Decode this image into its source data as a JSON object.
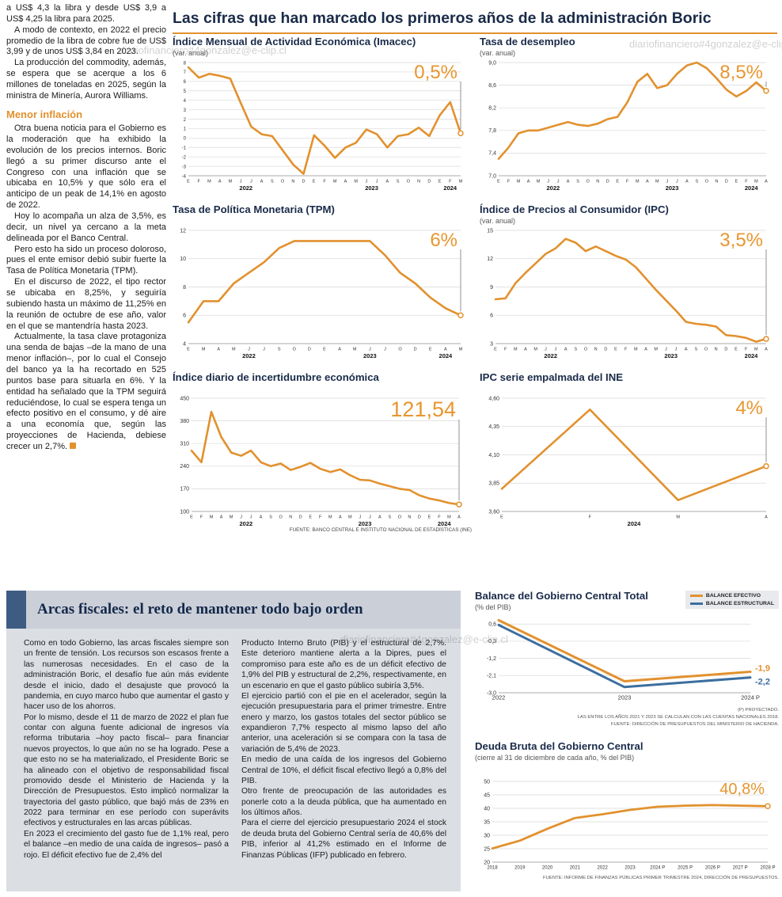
{
  "watermark": "diariofinanciero#4gonzalez@e-clip.cl",
  "main_title": "Las cifras que han marcado los primeros años de la administración Boric",
  "left_column": {
    "paragraphs": [
      "a US$ 4,3 la libra y desde US$ 3,9 a US$ 4,25 la libra para 2025.",
      "A modo de contexto, en 2022 el precio promedio de la libra de cobre fue de US$ 3,99 y de unos US$ 3,84 en 2023.",
      "La producción del commodity, además, se espera que se acerque a los 6 millones de toneladas en 2025, según la ministra de Minería, Aurora Williams."
    ],
    "heading": "Menor inflación",
    "paragraphs2": [
      "Otra buena noticia para el Gobierno es la moderación que ha exhibido la evolución de los precios internos. Boric llegó a su primer discurso ante el Congreso con una inflación que se ubicaba en 10,5% y que sólo era el anticipo de un peak de 14,1% en agosto de 2022.",
      "Hoy lo acompaña un alza de 3,5%, es decir, un nivel ya cercano a la meta delineada por el Banco Central.",
      "Pero esto ha sido un proceso doloroso, pues el ente emisor debió subir fuerte la Tasa de Política Monetaria (TPM).",
      "En el discurso de 2022, el tipo rector se ubicaba en 8,25%, y seguiría subiendo hasta un máximo de 11,25% en la reunión de octubre de ese año, valor en el que se mantendría hasta 2023.",
      "Actualmente, la tasa clave protagoniza una senda de bajas –de la mano de una menor inflación–, por lo cual el Consejo del banco ya la ha recortado en 525 puntos base para situarla en 6%. Y la entidad ha señalado que la TPM seguirá reduciéndose, lo cual se espera tenga un efecto positivo en el consumo, y dé aire a una economía que, según las proyecciones de Hacienda, debiese crecer un 2,7%."
    ]
  },
  "sources": {
    "top": "FUENTE: BANCO CENTRAL E INSTITUTO NACIONAL DE ESTADÍSTICAS (INE)"
  },
  "chart_data": [
    {
      "type": "line",
      "title": "Índice Mensual de Actividad Económica (Imacec)",
      "subtitle": "(var. anual)",
      "big_label": "0,5%",
      "big_fs": 24,
      "ylim": [
        -4,
        8
      ],
      "yticks": [
        8,
        7,
        6,
        5,
        4,
        3,
        2,
        1,
        0,
        -1,
        -2,
        -3,
        -4
      ],
      "yfs": 6,
      "x_labels": [
        "E",
        "F",
        "M",
        "A",
        "M",
        "J",
        "J",
        "A",
        "S",
        "O",
        "N",
        "D",
        "E",
        "F",
        "M",
        "A",
        "M",
        "J",
        "J",
        "A",
        "S",
        "O",
        "N",
        "D",
        "E",
        "F",
        "M"
      ],
      "years": [
        {
          "label": "2022",
          "start": 0,
          "end": 11
        },
        {
          "label": "2023",
          "start": 12,
          "end": 23
        },
        {
          "label": "2024",
          "start": 24,
          "end": 26
        }
      ],
      "values": [
        7.5,
        6.4,
        6.8,
        6.6,
        6.3,
        3.7,
        1.2,
        0.4,
        0.2,
        -1.3,
        -2.8,
        -3.8,
        0.3,
        -0.8,
        -2.1,
        -1.0,
        -0.5,
        0.9,
        0.4,
        -1.0,
        0.2,
        0.4,
        1.1,
        0.2,
        2.4,
        3.8,
        0.5
      ],
      "color": "#E2912E",
      "m": [
        20,
        5,
        14,
        22
      ]
    },
    {
      "type": "line",
      "title": "Tasa de desempleo",
      "subtitle": "(var. anual)",
      "big_label": "8,5%",
      "big_fs": 24,
      "ylim": [
        7.0,
        9.0
      ],
      "yticks": [
        "9,0",
        "8,6",
        "8,2",
        "7,8",
        "7,4",
        "7,0"
      ],
      "yfs": 7,
      "x_labels": [
        "E",
        "F",
        "M",
        "A",
        "M",
        "J",
        "J",
        "A",
        "S",
        "O",
        "N",
        "D",
        "E",
        "F",
        "M",
        "A",
        "M",
        "J",
        "J",
        "A",
        "S",
        "O",
        "N",
        "D",
        "E",
        "F",
        "M",
        "A"
      ],
      "years": [
        {
          "label": "2022",
          "start": 0,
          "end": 11
        },
        {
          "label": "2023",
          "start": 12,
          "end": 23
        },
        {
          "label": "2024",
          "start": 24,
          "end": 27
        }
      ],
      "values": [
        7.3,
        7.5,
        7.75,
        7.8,
        7.8,
        7.85,
        7.9,
        7.95,
        7.9,
        7.88,
        7.92,
        8.0,
        8.04,
        8.3,
        8.66,
        8.8,
        8.55,
        8.6,
        8.8,
        8.95,
        9.0,
        8.9,
        8.72,
        8.52,
        8.4,
        8.5,
        8.65,
        8.5
      ],
      "color": "#E2912E",
      "m": [
        24,
        5,
        16,
        22
      ]
    },
    {
      "type": "line",
      "title": "Tasa de Política Monetaria (TPM)",
      "subtitle": "",
      "big_label": "6%",
      "big_fs": 24,
      "ylim": [
        4,
        12
      ],
      "yticks": [
        12,
        10,
        8,
        6,
        4
      ],
      "yfs": 7,
      "x_labels": [
        "E",
        "M",
        "A",
        "M",
        "J",
        "J",
        "S",
        "O",
        "D",
        "E",
        "A",
        "M",
        "J",
        "J",
        "O",
        "D",
        "E",
        "A",
        "M"
      ],
      "years": [
        {
          "label": "2022",
          "start": 0,
          "end": 8
        },
        {
          "label": "2023",
          "start": 9,
          "end": 15
        },
        {
          "label": "2024",
          "start": 16,
          "end": 18
        }
      ],
      "values": [
        5.5,
        7.0,
        7.0,
        8.25,
        9.0,
        9.75,
        10.75,
        11.25,
        11.25,
        11.25,
        11.25,
        11.25,
        11.25,
        10.25,
        9.0,
        8.25,
        7.25,
        6.5,
        6.0
      ],
      "color": "#E2912E",
      "m": [
        20,
        5,
        14,
        22
      ]
    },
    {
      "type": "line",
      "title": "Índice de Precios al Consumidor (IPC)",
      "subtitle": "(var. anual)",
      "big_label": "3,5%",
      "big_fs": 24,
      "ylim": [
        3,
        15
      ],
      "yticks": [
        15,
        12,
        9,
        6,
        3
      ],
      "yfs": 7,
      "x_labels": [
        "E",
        "F",
        "M",
        "A",
        "M",
        "J",
        "J",
        "A",
        "S",
        "O",
        "N",
        "D",
        "E",
        "F",
        "M",
        "A",
        "M",
        "J",
        "J",
        "A",
        "S",
        "O",
        "N",
        "D",
        "E",
        "F",
        "M",
        "A"
      ],
      "years": [
        {
          "label": "2022",
          "start": 0,
          "end": 11
        },
        {
          "label": "2023",
          "start": 12,
          "end": 23
        },
        {
          "label": "2024",
          "start": 24,
          "end": 27
        }
      ],
      "values": [
        7.7,
        7.8,
        9.4,
        10.5,
        11.5,
        12.5,
        13.1,
        14.1,
        13.7,
        12.8,
        13.3,
        12.8,
        12.3,
        11.9,
        11.1,
        9.9,
        8.7,
        7.6,
        6.5,
        5.3,
        5.1,
        5.0,
        4.8,
        3.9,
        3.8,
        3.6,
        3.2,
        3.5
      ],
      "color": "#E2912E",
      "m": [
        20,
        5,
        16,
        22
      ]
    },
    {
      "type": "line",
      "title": "Índice diario de incertidumbre económica",
      "subtitle": "",
      "big_label": "121,54",
      "big_fs": 27,
      "ylim": [
        100,
        450
      ],
      "yticks": [
        450,
        380,
        310,
        240,
        170,
        100
      ],
      "yfs": 7,
      "x_labels": [
        "E",
        "F",
        "M",
        "A",
        "M",
        "J",
        "J",
        "A",
        "S",
        "O",
        "N",
        "D",
        "E",
        "F",
        "M",
        "A",
        "M",
        "J",
        "J",
        "A",
        "S",
        "O",
        "N",
        "D",
        "E",
        "F",
        "M",
        "A"
      ],
      "years": [
        {
          "label": "2022",
          "start": 0,
          "end": 11
        },
        {
          "label": "2023",
          "start": 12,
          "end": 23
        },
        {
          "label": "2024",
          "start": 24,
          "end": 27
        }
      ],
      "values": [
        288,
        252,
        408,
        330,
        282,
        272,
        288,
        252,
        240,
        248,
        228,
        238,
        250,
        232,
        222,
        230,
        212,
        198,
        196,
        186,
        178,
        170,
        166,
        150,
        140,
        134,
        126,
        121.54
      ],
      "color": "#E2912E",
      "m": [
        24,
        5,
        16,
        22
      ]
    },
    {
      "type": "line",
      "title": "IPC serie empalmada del INE",
      "subtitle": "",
      "big_label": "4%",
      "big_fs": 24,
      "ylim": [
        3.6,
        4.6
      ],
      "yticks": [
        "4,60",
        "4,35",
        "4,10",
        "3,85",
        "3,60"
      ],
      "yfs": 7,
      "x_labels": [
        "E",
        "F",
        "M",
        "A"
      ],
      "years": [
        {
          "label": "2024",
          "start": 0,
          "end": 3
        }
      ],
      "values": [
        3.8,
        4.5,
        3.7,
        4.0
      ],
      "color": "#E2912E",
      "m": [
        28,
        5,
        16,
        22
      ]
    },
    {
      "type": "line",
      "title": "Balance del Gobierno Central Total",
      "subtitle": "(% del PIB)",
      "ylim": [
        -3.0,
        0.9
      ],
      "yticks": [
        "0,6",
        "-0,3",
        "-1,2",
        "-2,1",
        "-3,0"
      ],
      "yfs": 7,
      "x_labels": [
        "2022",
        "2023",
        "2024 P"
      ],
      "xfs": 7.5,
      "series": [
        {
          "name": "BALANCE EFECTIVO",
          "color": "#E2912E",
          "values": [
            0.8,
            -2.4,
            -1.9
          ],
          "end_label": "-1,9",
          "end_dy": -1,
          "end_circle": false
        },
        {
          "name": "BALANCE ESTRUCTURAL",
          "color": "#3C6E9F",
          "values": [
            0.55,
            -2.7,
            -2.2
          ],
          "end_label": "-2,2",
          "end_dy": 9,
          "end_circle": false
        }
      ],
      "lw": 3,
      "m": [
        30,
        8,
        36,
        16
      ]
    },
    {
      "type": "line",
      "title": "Deuda Bruta del Gobierno Central",
      "subtitle": "(cierre al 31 de diciembre de cada año, % del PIB)",
      "big_label": "40,8%",
      "big_fs": 20,
      "vline": false,
      "ylim": [
        20,
        50
      ],
      "yticks": [
        50,
        45,
        40,
        35,
        30,
        25,
        20
      ],
      "yfs": 7,
      "x_labels": [
        "2018",
        "2019",
        "2020",
        "2021",
        "2022",
        "2023",
        "2024 P",
        "2025 P",
        "2026 P",
        "2027 P",
        "2028 P"
      ],
      "xfs": 6,
      "values": [
        25.1,
        28.0,
        32.4,
        36.4,
        37.8,
        39.4,
        40.6,
        41.0,
        41.2,
        41.0,
        40.8
      ],
      "color": "#E2912E",
      "lw": 2.8,
      "m": [
        22,
        24,
        14,
        14
      ]
    }
  ],
  "fiscal": {
    "title": "Arcas fiscales: el reto de mantener todo bajo orden",
    "col1": [
      "Como en todo Gobierno, las arcas fiscales siempre son un frente de tensión. Los recursos son escasos frente a las numerosas necesidades. En el caso de la administración Boric, el desafío fue aún más evidente desde el inicio, dado el desajuste que provocó la pandemia, en cuyo marco hubo que aumentar el gasto y hacer uso de los ahorros.",
      "Por lo mismo, desde el 11 de marzo de 2022 el plan fue contar con alguna fuente adicional de ingresos vía reforma tributaria –hoy pacto fiscal– para financiar nuevos proyectos, lo que aún no se ha logrado. Pese a que esto no se ha materializado, el Presidente Boric se ha alineado con el objetivo de responsabilidad fiscal promovido desde el Ministerio de Hacienda y la Dirección de Presupuestos. Esto implicó normalizar la trayectoria del gasto público, que bajó más de 23% en 2022 para terminar en ese período con superávits efectivos y estructurales en las arcas públicas.",
      "En 2023 el crecimiento del gasto fue de 1,1% real, pero el balance –en medio de una caída de ingresos– pasó a rojo. El déficit efectivo fue de 2,4% del"
    ],
    "col2": [
      "Producto Interno Bruto (PIB) y el estructural de 2,7%. Este deterioro mantiene alerta a la Dipres, pues el compromiso para este año es de un déficit efectivo de 1,9% del PIB y estructural de 2,2%, respectivamente, en un escenario en que el gasto público subiría 3,5%.",
      "El ejercicio partió con el pie en el acelerador, según la ejecución presupuestaria para el primer trimestre. Entre enero y marzo, los gastos totales del sector público se expandieron 7,7% respecto al mismo lapso del año anterior, una aceleración si se compara con la tasa de variación de 5,4% de 2023.",
      "En medio de una caída de los ingresos del Gobierno Central de 10%, el déficit fiscal efectivo llegó a 0,8% del PIB.",
      "Otro frente de preocupación de las autoridades es ponerle coto a la deuda pública, que ha aumentado en los últimos años.",
      "Para el cierre del ejercicio presupuestario 2024 el stock de deuda bruta del Gobierno Central sería de 40,6% del PIB, inferior al 41,2% estimado en el Informe de Finanzas Públicas (IFP) publicado en febrero."
    ]
  },
  "balance": {
    "legend": [
      {
        "label": "BALANCE EFECTIVO",
        "color": "#E2912E"
      },
      {
        "label": "BALANCE ESTRUCTURAL",
        "color": "#3C6E9F"
      }
    ],
    "footnotes": [
      "(P) PROYECTADO.",
      "LAS ENTRE LOS AÑOS 2021 Y 2023 SE CALCULAN CON LAS CUENTAS NACIONALES 2018.",
      "FUENTE: DIRECCIÓN DE PRESUPUESTOS DEL MINISTERIO DE HACIENDA."
    ]
  },
  "deuda": {
    "footnote": "FUENTE: INFORME DE FINANZAS PÚBLICAS PRIMER TRIMESTRE 2024, DIRECCIÓN DE PRESUPUESTOS."
  }
}
